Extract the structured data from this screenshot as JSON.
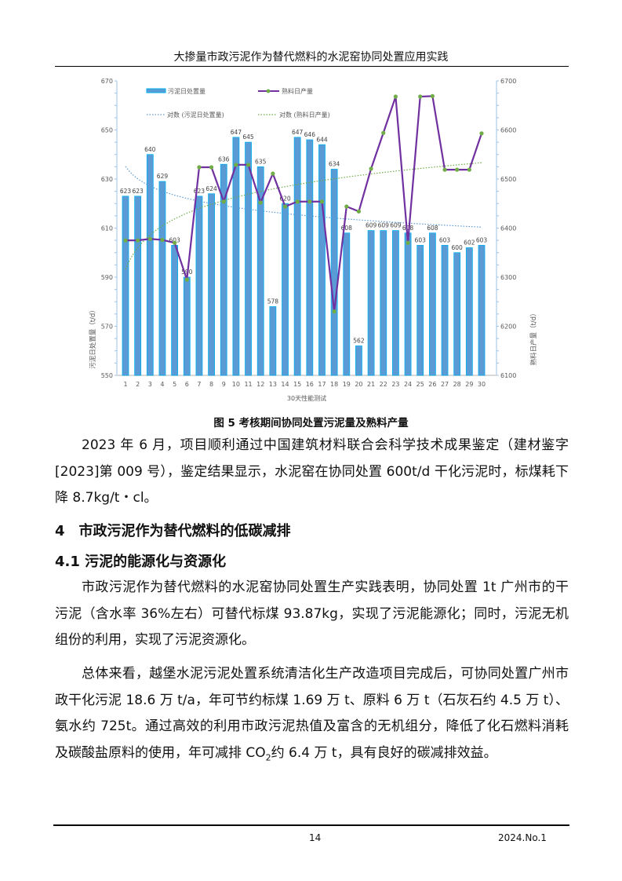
{
  "header": {
    "title": "大掺量市政污泥作为替代燃料的水泥窑协同处置应用实践"
  },
  "figure": {
    "caption": "图 5  考核期间协同处置污泥量及熟料产量"
  },
  "chart_data": {
    "type": "bar+line",
    "xlabel": "30天性能测试",
    "ylabel_left": "污泥日处置量（t/d）",
    "ylabel_right": "熟料日产量（t/d）",
    "categories": [
      "1",
      "2",
      "3",
      "4",
      "5",
      "6",
      "7",
      "8",
      "9",
      "10",
      "11",
      "12",
      "13",
      "14",
      "15",
      "16",
      "17",
      "18",
      "19",
      "20",
      "21",
      "22",
      "23",
      "24",
      "25",
      "26",
      "27",
      "28",
      "29",
      "30"
    ],
    "ylim_left": [
      550,
      670
    ],
    "yticks_left": [
      "550",
      "570",
      "590",
      "610",
      "630",
      "650",
      "670"
    ],
    "ylim_right": [
      6100,
      6700
    ],
    "yticks_right": [
      "6100",
      "6200",
      "6300",
      "6400",
      "6500",
      "6600",
      "6700"
    ],
    "grid": false,
    "legend_position": "top",
    "series": [
      {
        "name": "污泥日处置量",
        "type": "bar",
        "axis": "left",
        "color": "#5b9bd5",
        "edge": "#00b0f0",
        "values": [
          623,
          623,
          640,
          629,
          603,
          590,
          623,
          624,
          636,
          647,
          645,
          635,
          578,
          620,
          647,
          646,
          644,
          634,
          608,
          562,
          609,
          609,
          609,
          608,
          603,
          608,
          603,
          600,
          602,
          603
        ]
      },
      {
        "name": "熟料日产量",
        "type": "line",
        "axis": "right",
        "color": "#7030a0",
        "marker_color": "#70ad47",
        "values": [
          6375,
          6375,
          6378,
          6376,
          6370,
          6295,
          6524,
          6524,
          6454,
          6529,
          6529,
          6452,
          6511,
          6444,
          6454,
          6454,
          6454,
          6230,
          6444,
          6434,
          6521,
          6594,
          6668,
          6370,
          6668,
          6669,
          6519,
          6519,
          6519,
          6593
        ]
      },
      {
        "name": "对数 (污泥日处置量)",
        "type": "trendline-log",
        "of": "污泥日处置量",
        "color": "#5b9bd5"
      },
      {
        "name": "对数 (熟料日产量)",
        "type": "trendline-log",
        "of": "熟料日产量",
        "color": "#70ad47"
      }
    ]
  },
  "paragraphs": {
    "p1": "2023 年 6 月，项目顺利通过中国建筑材料联合会科学技术成果鉴定（建材鉴字[2023]第 009 号），鉴定结果显示，水泥窑在协同处置 600t/d 干化污泥时，标煤耗下降 8.7kg/t・cl。",
    "h1": "4　市政污泥作为替代燃料的低碳减排",
    "h2": "4.1  污泥的能源化与资源化",
    "p2": "市政污泥作为替代燃料的水泥窑协同处置生产实践表明，协同处置 1t 广州市的干污泥（含水率 36%左右）可替代标煤 93.87kg，实现了污泥能源化；同时，污泥无机组份的利用，实现了污泥资源化。",
    "p3a": "总体来看，越堡水泥污泥处置系统清洁化生产改造项目完成后，可协同处置广州市政干化污泥 18.6 万 t/a，年可节约标煤 1.69 万 t、原料 6 万 t（石灰石约 4.5 万 t）、氨水约 725t。通过高效的利用市政污泥热值及富含的无机组分，降低了化石燃料消耗及碳酸盐原料的使用，年可减排 CO",
    "p3sub": "2",
    "p3b": "约 6.4 万 t，具有良好的碳减排效益。"
  },
  "footer": {
    "page": "14",
    "issue": "2024.No.1"
  }
}
